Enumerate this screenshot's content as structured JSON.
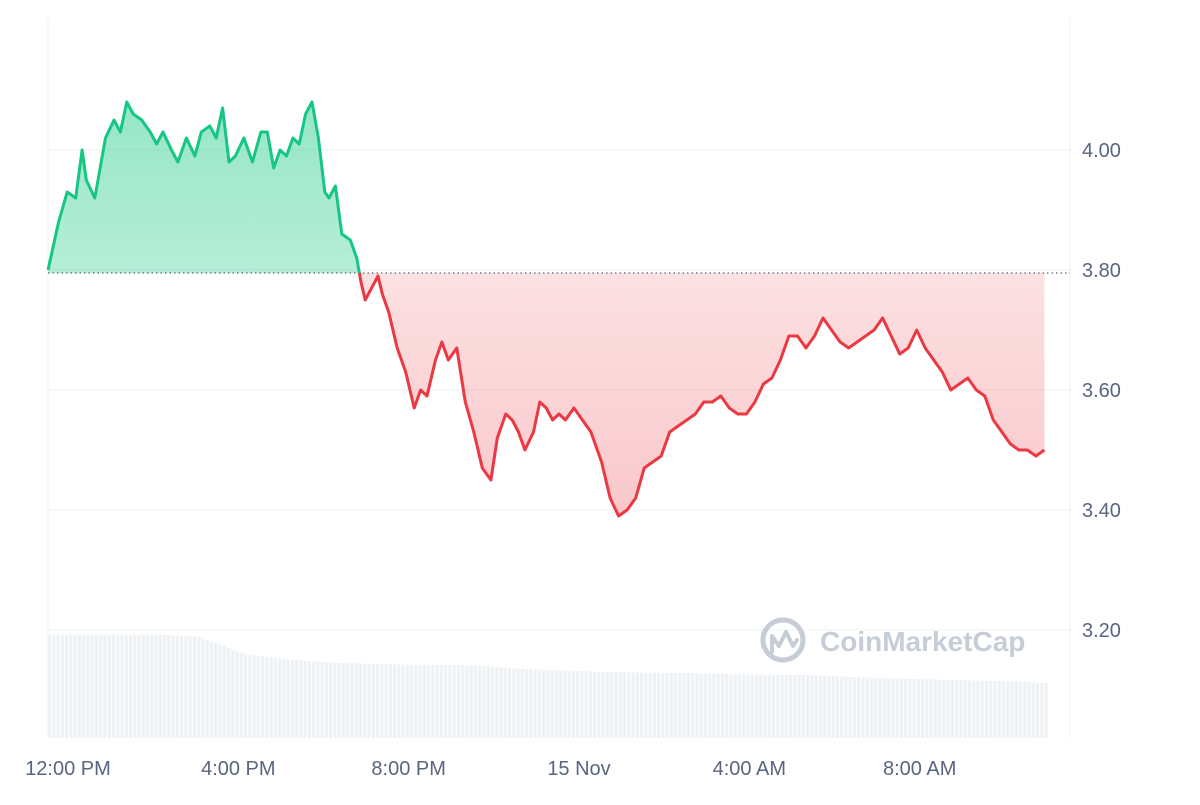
{
  "watermark": {
    "brand": "CoinMarketCap",
    "icon": "coinmarketcap-logo-icon"
  },
  "colors": {
    "up_line": "#16c784",
    "down_line": "#ea3943",
    "up_fill": "#16c784",
    "down_fill": "#ea3943",
    "grid": "#eff2f5",
    "baseline": "#58667e",
    "volume": "#eff2f5",
    "axis_text": "#58667e"
  },
  "chart_data": {
    "type": "area",
    "title": "",
    "xlabel": "",
    "ylabel": "",
    "ylim": [
      3.02,
      4.22
    ],
    "xlim": [
      0,
      24
    ],
    "x_unit": "hours since 12:00 PM",
    "baseline_value": 3.795,
    "grid": true,
    "y_ticks": [
      {
        "value": 4.0,
        "label": "4.00"
      },
      {
        "value": 3.8,
        "label": "3.80"
      },
      {
        "value": 3.6,
        "label": "3.60"
      },
      {
        "value": 3.4,
        "label": "3.40"
      },
      {
        "value": 3.2,
        "label": "3.20"
      }
    ],
    "x_ticks": [
      {
        "value": 0,
        "label": "12:00 PM"
      },
      {
        "value": 4,
        "label": "4:00 PM"
      },
      {
        "value": 8,
        "label": "8:00 PM"
      },
      {
        "value": 12,
        "label": "15 Nov"
      },
      {
        "value": 16,
        "label": "4:00 AM"
      },
      {
        "value": 20,
        "label": "8:00 AM"
      }
    ],
    "price": [
      [
        0.0,
        3.8
      ],
      [
        0.25,
        3.88
      ],
      [
        0.45,
        3.93
      ],
      [
        0.65,
        3.92
      ],
      [
        0.8,
        4.0
      ],
      [
        0.9,
        3.95
      ],
      [
        1.1,
        3.92
      ],
      [
        1.35,
        4.02
      ],
      [
        1.55,
        4.05
      ],
      [
        1.7,
        4.03
      ],
      [
        1.85,
        4.08
      ],
      [
        2.0,
        4.06
      ],
      [
        2.2,
        4.05
      ],
      [
        2.4,
        4.03
      ],
      [
        2.55,
        4.01
      ],
      [
        2.7,
        4.03
      ],
      [
        2.9,
        4.0
      ],
      [
        3.05,
        3.98
      ],
      [
        3.25,
        4.02
      ],
      [
        3.45,
        3.99
      ],
      [
        3.6,
        4.03
      ],
      [
        3.8,
        4.04
      ],
      [
        3.95,
        4.02
      ],
      [
        4.1,
        4.07
      ],
      [
        4.25,
        3.98
      ],
      [
        4.4,
        3.99
      ],
      [
        4.6,
        4.02
      ],
      [
        4.8,
        3.98
      ],
      [
        5.0,
        4.03
      ],
      [
        5.15,
        4.03
      ],
      [
        5.3,
        3.97
      ],
      [
        5.45,
        4.0
      ],
      [
        5.6,
        3.99
      ],
      [
        5.75,
        4.02
      ],
      [
        5.9,
        4.01
      ],
      [
        6.05,
        4.06
      ],
      [
        6.2,
        4.08
      ],
      [
        6.35,
        4.02
      ],
      [
        6.5,
        3.93
      ],
      [
        6.6,
        3.92
      ],
      [
        6.75,
        3.94
      ],
      [
        6.9,
        3.86
      ],
      [
        7.1,
        3.85
      ],
      [
        7.25,
        3.82
      ],
      [
        7.35,
        3.78
      ],
      [
        7.45,
        3.75
      ],
      [
        7.6,
        3.77
      ],
      [
        7.75,
        3.79
      ],
      [
        7.85,
        3.76
      ],
      [
        8.0,
        3.73
      ],
      [
        8.2,
        3.67
      ],
      [
        8.4,
        3.63
      ],
      [
        8.6,
        3.57
      ],
      [
        8.75,
        3.6
      ],
      [
        8.9,
        3.59
      ],
      [
        9.1,
        3.65
      ],
      [
        9.25,
        3.68
      ],
      [
        9.4,
        3.65
      ],
      [
        9.6,
        3.67
      ],
      [
        9.8,
        3.58
      ],
      [
        10.0,
        3.53
      ],
      [
        10.2,
        3.47
      ],
      [
        10.4,
        3.45
      ],
      [
        10.55,
        3.52
      ],
      [
        10.75,
        3.56
      ],
      [
        10.9,
        3.55
      ],
      [
        11.05,
        3.53
      ],
      [
        11.2,
        3.5
      ],
      [
        11.4,
        3.53
      ],
      [
        11.55,
        3.58
      ],
      [
        11.7,
        3.57
      ],
      [
        11.85,
        3.55
      ],
      [
        12.0,
        3.56
      ],
      [
        12.15,
        3.55
      ],
      [
        12.35,
        3.57
      ],
      [
        12.55,
        3.55
      ],
      [
        12.75,
        3.53
      ],
      [
        13.0,
        3.48
      ],
      [
        13.2,
        3.42
      ],
      [
        13.4,
        3.39
      ],
      [
        13.6,
        3.4
      ],
      [
        13.8,
        3.42
      ],
      [
        14.0,
        3.47
      ],
      [
        14.2,
        3.48
      ],
      [
        14.4,
        3.49
      ],
      [
        14.6,
        3.53
      ],
      [
        14.8,
        3.54
      ],
      [
        15.0,
        3.55
      ],
      [
        15.2,
        3.56
      ],
      [
        15.4,
        3.58
      ],
      [
        15.6,
        3.58
      ],
      [
        15.8,
        3.59
      ],
      [
        16.0,
        3.57
      ],
      [
        16.2,
        3.56
      ],
      [
        16.4,
        3.56
      ],
      [
        16.6,
        3.58
      ],
      [
        16.8,
        3.61
      ],
      [
        17.0,
        3.62
      ],
      [
        17.2,
        3.65
      ],
      [
        17.4,
        3.69
      ],
      [
        17.6,
        3.69
      ],
      [
        17.8,
        3.67
      ],
      [
        18.0,
        3.69
      ],
      [
        18.2,
        3.72
      ],
      [
        18.4,
        3.7
      ],
      [
        18.6,
        3.68
      ],
      [
        18.8,
        3.67
      ],
      [
        19.0,
        3.68
      ],
      [
        19.2,
        3.69
      ],
      [
        19.4,
        3.7
      ],
      [
        19.6,
        3.72
      ],
      [
        19.8,
        3.69
      ],
      [
        20.0,
        3.66
      ],
      [
        20.2,
        3.67
      ],
      [
        20.4,
        3.7
      ],
      [
        20.6,
        3.67
      ],
      [
        20.8,
        3.65
      ],
      [
        21.0,
        3.63
      ],
      [
        21.2,
        3.6
      ],
      [
        21.4,
        3.61
      ],
      [
        21.6,
        3.62
      ],
      [
        21.8,
        3.6
      ],
      [
        22.0,
        3.59
      ],
      [
        22.2,
        3.55
      ],
      [
        22.4,
        3.53
      ],
      [
        22.6,
        3.51
      ],
      [
        22.8,
        3.5
      ],
      [
        23.0,
        3.5
      ],
      [
        23.2,
        3.49
      ],
      [
        23.4,
        3.5
      ]
    ],
    "volume_ylim": [
      0,
      1.0
    ],
    "volume": [
      [
        0.0,
        0.94
      ],
      [
        2.5,
        0.94
      ],
      [
        3.5,
        0.92
      ],
      [
        4.0,
        0.85
      ],
      [
        4.5,
        0.77
      ],
      [
        5.0,
        0.74
      ],
      [
        5.5,
        0.72
      ],
      [
        6.0,
        0.7
      ],
      [
        7.0,
        0.68
      ],
      [
        8.0,
        0.67
      ],
      [
        10.0,
        0.66
      ],
      [
        11.0,
        0.63
      ],
      [
        13.0,
        0.6
      ],
      [
        15.0,
        0.59
      ],
      [
        16.0,
        0.58
      ],
      [
        18.0,
        0.57
      ],
      [
        19.0,
        0.55
      ],
      [
        21.0,
        0.53
      ],
      [
        23.0,
        0.51
      ],
      [
        23.4,
        0.5
      ]
    ]
  }
}
